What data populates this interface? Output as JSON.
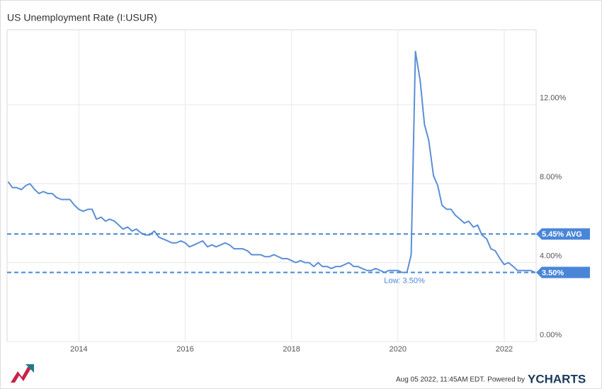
{
  "chart_data": {
    "type": "line",
    "title": "US Unemployment Rate (I:USUR)",
    "x": [
      2012.67,
      2012.75,
      2012.83,
      2012.92,
      2013.0,
      2013.08,
      2013.17,
      2013.25,
      2013.33,
      2013.42,
      2013.5,
      2013.58,
      2013.67,
      2013.75,
      2013.83,
      2013.92,
      2014.0,
      2014.08,
      2014.17,
      2014.25,
      2014.33,
      2014.42,
      2014.5,
      2014.58,
      2014.67,
      2014.75,
      2014.83,
      2014.92,
      2015.0,
      2015.08,
      2015.17,
      2015.25,
      2015.33,
      2015.42,
      2015.5,
      2015.58,
      2015.67,
      2015.75,
      2015.83,
      2015.92,
      2016.0,
      2016.08,
      2016.17,
      2016.25,
      2016.33,
      2016.42,
      2016.5,
      2016.58,
      2016.67,
      2016.75,
      2016.83,
      2016.92,
      2017.0,
      2017.08,
      2017.17,
      2017.25,
      2017.33,
      2017.42,
      2017.5,
      2017.58,
      2017.67,
      2017.75,
      2017.83,
      2017.92,
      2018.0,
      2018.08,
      2018.17,
      2018.25,
      2018.33,
      2018.42,
      2018.5,
      2018.58,
      2018.67,
      2018.75,
      2018.83,
      2018.92,
      2019.0,
      2019.08,
      2019.17,
      2019.25,
      2019.33,
      2019.42,
      2019.5,
      2019.58,
      2019.67,
      2019.75,
      2019.83,
      2019.92,
      2020.0,
      2020.08,
      2020.17,
      2020.25,
      2020.33,
      2020.42,
      2020.5,
      2020.58,
      2020.67,
      2020.75,
      2020.83,
      2020.92,
      2021.0,
      2021.08,
      2021.17,
      2021.25,
      2021.33,
      2021.42,
      2021.5,
      2021.58,
      2021.67,
      2021.75,
      2021.83,
      2021.92,
      2022.0,
      2022.08,
      2022.17,
      2022.25,
      2022.33,
      2022.42,
      2022.5,
      2022.58
    ],
    "series": [
      {
        "name": "US Unemployment Rate",
        "color": "#5b8fd6",
        "values": [
          8.1,
          7.8,
          7.8,
          7.7,
          7.9,
          8.0,
          7.7,
          7.5,
          7.6,
          7.5,
          7.5,
          7.3,
          7.2,
          7.2,
          7.2,
          6.9,
          6.7,
          6.6,
          6.7,
          6.7,
          6.2,
          6.3,
          6.1,
          6.2,
          6.1,
          5.9,
          5.7,
          5.8,
          5.6,
          5.7,
          5.5,
          5.4,
          5.4,
          5.6,
          5.3,
          5.2,
          5.1,
          5.0,
          5.0,
          5.1,
          5.0,
          4.8,
          4.9,
          5.0,
          5.1,
          4.8,
          4.9,
          4.8,
          4.9,
          5.0,
          4.9,
          4.7,
          4.7,
          4.7,
          4.6,
          4.4,
          4.4,
          4.4,
          4.3,
          4.3,
          4.4,
          4.3,
          4.2,
          4.2,
          4.1,
          4.0,
          4.1,
          4.0,
          4.0,
          3.8,
          4.0,
          3.8,
          3.8,
          3.7,
          3.8,
          3.8,
          3.9,
          4.0,
          3.8,
          3.8,
          3.7,
          3.6,
          3.6,
          3.7,
          3.6,
          3.5,
          3.6,
          3.6,
          3.6,
          3.5,
          3.5,
          4.4,
          14.7,
          13.2,
          11.0,
          10.2,
          8.4,
          7.9,
          6.9,
          6.7,
          6.7,
          6.4,
          6.2,
          6.0,
          6.1,
          5.8,
          5.9,
          5.4,
          5.2,
          4.7,
          4.6,
          4.2,
          3.9,
          4.0,
          3.8,
          3.6,
          3.6,
          3.6,
          3.6,
          3.5
        ]
      }
    ],
    "xlim": [
      2012.65,
      2022.6
    ],
    "xticks": [
      2014,
      2016,
      2018,
      2020,
      2022
    ],
    "ylim": [
      0,
      15.8
    ],
    "yticks": [
      {
        "value": 0,
        "label": "0.00%"
      },
      {
        "value": 4,
        "label": "4.00%"
      },
      {
        "value": 8,
        "label": "8.00%"
      },
      {
        "value": 12,
        "label": "12.00%"
      }
    ],
    "grid": true,
    "reference_lines": [
      {
        "value": 5.45,
        "label": "5.45% AVG",
        "color": "#4a86d8"
      },
      {
        "value": 3.5,
        "label": "3.50%",
        "color": "#4a86d8"
      }
    ],
    "annotation": "Low: 3.50%"
  },
  "footer": {
    "timestamp": "Aug 05 2022, 11:45AM EDT.",
    "powered": "Powered by",
    "brand": "YCHARTS"
  }
}
